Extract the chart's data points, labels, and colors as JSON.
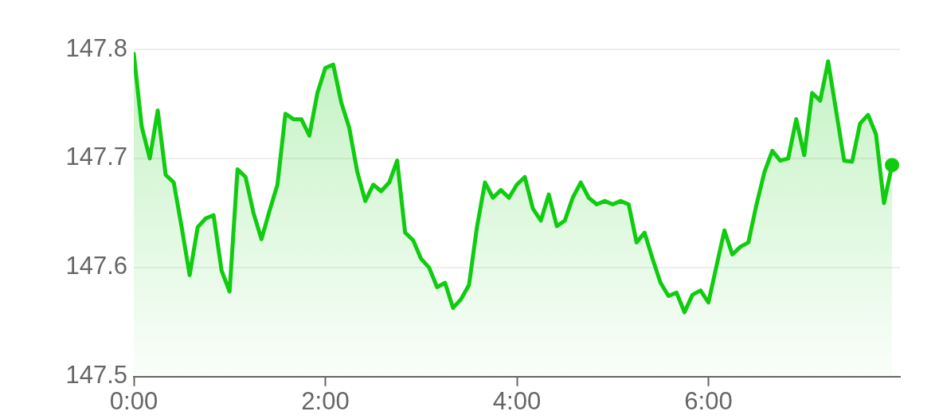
{
  "chart_data": {
    "type": "area",
    "color": "#10cc10",
    "x": [
      0,
      0.083,
      0.167,
      0.25,
      0.333,
      0.417,
      0.5,
      0.583,
      0.667,
      0.75,
      0.833,
      0.917,
      1,
      1.083,
      1.167,
      1.25,
      1.333,
      1.417,
      1.5,
      1.583,
      1.667,
      1.75,
      1.833,
      1.917,
      2,
      2.083,
      2.167,
      2.25,
      2.333,
      2.417,
      2.5,
      2.583,
      2.667,
      2.75,
      2.833,
      2.917,
      3,
      3.083,
      3.167,
      3.25,
      3.333,
      3.417,
      3.5,
      3.583,
      3.667,
      3.75,
      3.833,
      3.917,
      4,
      4.083,
      4.167,
      4.25,
      4.333,
      4.417,
      4.5,
      4.583,
      4.667,
      4.75,
      4.833,
      4.917,
      5,
      5.083,
      5.167,
      5.25,
      5.333,
      5.417,
      5.5,
      5.583,
      5.667,
      5.75,
      5.833,
      5.917,
      6,
      6.083,
      6.167,
      6.25,
      6.333,
      6.417,
      6.5,
      6.583,
      6.667,
      6.75,
      6.833,
      6.917,
      7,
      7.083,
      7.167,
      7.25,
      7.417,
      7.5,
      7.583,
      7.667,
      7.75,
      7.833,
      7.917
    ],
    "values": [
      147.796,
      147.729,
      147.7,
      147.744,
      147.685,
      147.678,
      147.637,
      147.593,
      147.637,
      147.645,
      147.648,
      147.597,
      147.578,
      147.69,
      147.683,
      147.65,
      147.626,
      147.652,
      147.676,
      147.741,
      147.736,
      147.736,
      147.721,
      147.76,
      147.783,
      147.786,
      147.751,
      147.728,
      147.688,
      147.661,
      147.676,
      147.67,
      147.678,
      147.698,
      147.632,
      147.625,
      147.608,
      147.6,
      147.582,
      147.586,
      147.563,
      147.571,
      147.584,
      147.637,
      147.678,
      147.664,
      147.671,
      147.664,
      147.676,
      147.683,
      147.654,
      147.643,
      147.667,
      147.638,
      147.643,
      147.664,
      147.678,
      147.664,
      147.658,
      147.661,
      147.658,
      147.661,
      147.658,
      147.623,
      147.632,
      147.608,
      147.586,
      147.574,
      147.577,
      147.559,
      147.575,
      147.579,
      147.568,
      147.601,
      147.634,
      147.612,
      147.619,
      147.623,
      147.657,
      147.687,
      147.707,
      147.698,
      147.7,
      147.736,
      147.703,
      147.76,
      147.753,
      147.789,
      147.698,
      147.697,
      147.732,
      147.74,
      147.722,
      147.659,
      147.694
    ],
    "xlim": [
      0,
      8
    ],
    "xticks": [
      {
        "value": 0,
        "label": "0:00"
      },
      {
        "value": 2,
        "label": "2:00"
      },
      {
        "value": 4,
        "label": "4:00"
      },
      {
        "value": 6,
        "label": "6:00"
      }
    ],
    "ylim": [
      147.5,
      147.8
    ],
    "yticks": [
      147.5,
      147.6,
      147.7,
      147.8
    ],
    "grid": "y",
    "marker": "none",
    "line_style": "solid"
  }
}
